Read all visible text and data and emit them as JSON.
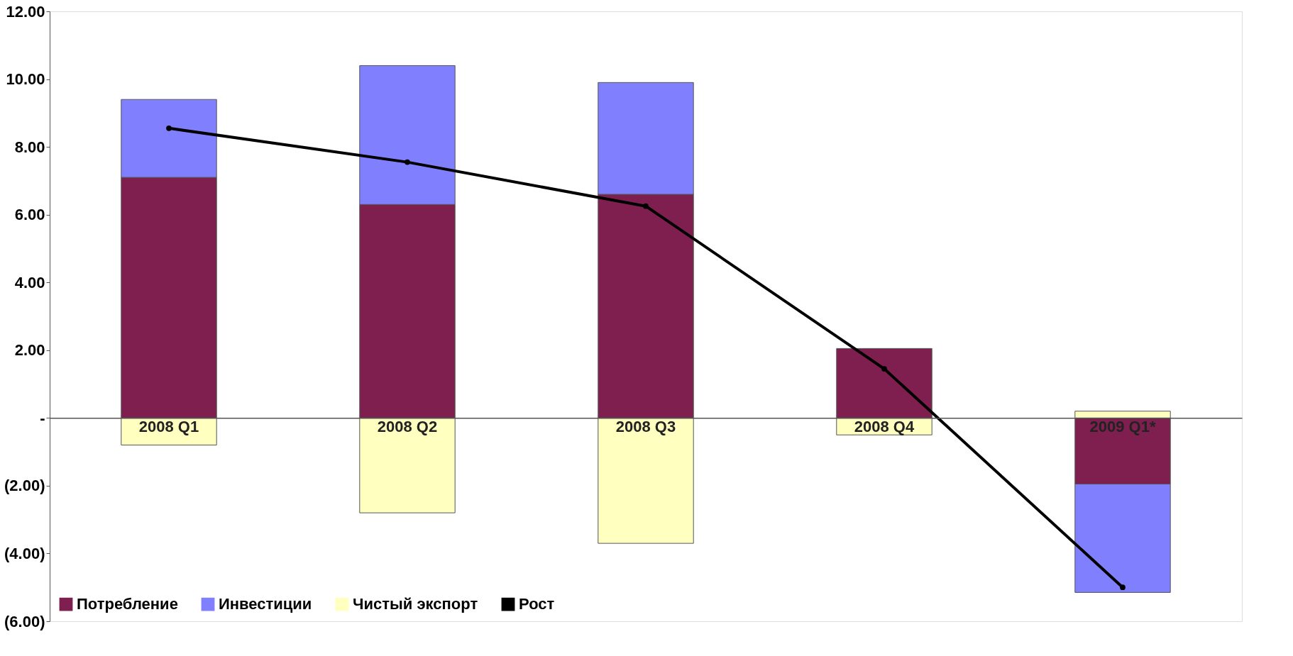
{
  "chart_data": {
    "type": "bar",
    "stacked": true,
    "categories": [
      "2008 Q1",
      "2008 Q2",
      "2008 Q3",
      "2008 Q4",
      "2009 Q1*"
    ],
    "series": [
      {
        "name": "Потребление",
        "color": "#7f1f4f",
        "values": [
          7.1,
          6.3,
          6.6,
          2.05,
          -1.95
        ]
      },
      {
        "name": "Инвестиции",
        "color": "#8080ff",
        "values": [
          2.3,
          4.1,
          3.3,
          null,
          -3.2
        ]
      },
      {
        "name": "Чистый экспорт",
        "color": "#ffffc0",
        "values": [
          -0.8,
          -2.8,
          -3.7,
          -0.5,
          0.2
        ]
      },
      {
        "name": "Рост",
        "color": "#000000",
        "type": "line",
        "values": [
          8.55,
          7.55,
          6.25,
          1.45,
          -5.0
        ]
      }
    ],
    "ylim": [
      -6,
      12
    ],
    "yticks": [
      {
        "value": -6,
        "label": "(6.00)"
      },
      {
        "value": -4,
        "label": "(4.00)"
      },
      {
        "value": -2,
        "label": "(2.00)"
      },
      {
        "value": 0,
        "label": "-"
      },
      {
        "value": 2,
        "label": "2.00"
      },
      {
        "value": 4,
        "label": "4.00"
      },
      {
        "value": 6,
        "label": "6.00"
      },
      {
        "value": 8,
        "label": "8.00"
      },
      {
        "value": 10,
        "label": "10.00"
      },
      {
        "value": 12,
        "label": "12.00"
      }
    ],
    "grid": false,
    "legend": "bottom",
    "marker": "circle"
  }
}
